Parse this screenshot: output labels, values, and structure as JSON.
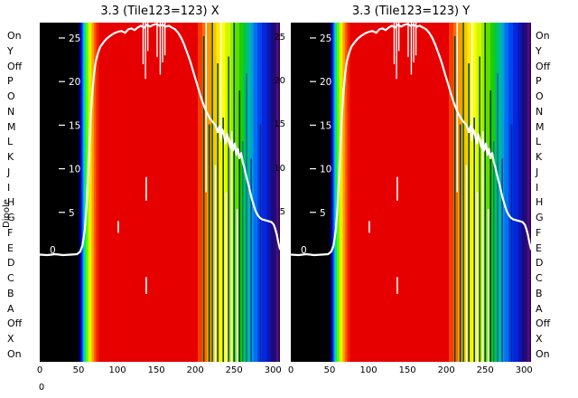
{
  "figure": {
    "dipole_axis_label": "Dipole",
    "dipole_labels_left": [
      "On",
      "Y",
      "Off",
      "P",
      "O",
      "N",
      "M",
      "L",
      "K",
      "J",
      "I",
      "H",
      "G",
      "F",
      "E",
      "D",
      "C",
      "B",
      "A",
      "Off",
      "X",
      "On"
    ],
    "dipole_labels_right": [
      "On",
      "Y",
      "Off",
      "P",
      "O",
      "N",
      "M",
      "L",
      "K",
      "J",
      "I",
      "H",
      "G",
      "F",
      "E",
      "D",
      "C",
      "B",
      "A",
      "Off",
      "X",
      "On"
    ],
    "bottom_left_stray_label": "0"
  },
  "panels": [
    {
      "title": "3.3 (Tile123=123) X"
    },
    {
      "title": "3.3 (Tile123=123) Y"
    }
  ],
  "chart_data": {
    "type": "heatmap",
    "title_left": "3.3 (Tile123=123) X",
    "title_right": "3.3 (Tile123=123) Y",
    "x_ticks": [
      0,
      50,
      100,
      150,
      200,
      250,
      300
    ],
    "x_range": [
      0,
      309
    ],
    "value_range": [
      -12.14,
      26.76
    ],
    "inner_value_ticks": [
      25,
      20,
      15,
      10,
      5
    ],
    "inner_zero_label": "0",
    "legend": "white curve = beam response overlaid on rainbow heatmap; both X and Y panels share the same data",
    "bands": [
      [
        0,
        "#000000"
      ],
      [
        50,
        "#00004f"
      ],
      [
        53,
        "#0020ff"
      ],
      [
        55,
        "#00a8ff"
      ],
      [
        57,
        "#00e87a"
      ],
      [
        59.5,
        "#52fa00"
      ],
      [
        62,
        "#c8ff00"
      ],
      [
        64.5,
        "#ffe800"
      ],
      [
        67,
        "#ffa000"
      ],
      [
        69.5,
        "#ff5a00"
      ],
      [
        72.5,
        "#f52000"
      ],
      [
        76,
        "#e60000"
      ],
      [
        203,
        "#f83c00"
      ],
      [
        209,
        "#ff6a00"
      ],
      [
        215,
        "#ff9900"
      ],
      [
        221,
        "#ffc400"
      ],
      [
        227,
        "#ffe900"
      ],
      [
        233,
        "#fdff00"
      ],
      [
        239,
        "#d0f700"
      ],
      [
        245,
        "#9cec00"
      ],
      [
        251,
        "#5ede00"
      ],
      [
        257,
        "#1ecf00"
      ],
      [
        262,
        "#00c455"
      ],
      [
        267,
        "#00b89e"
      ],
      [
        271,
        "#00a0d8"
      ],
      [
        275,
        "#0070f0"
      ],
      [
        280,
        "#0046f0"
      ],
      [
        286,
        "#0028dc"
      ],
      [
        292,
        "#0f14b4"
      ],
      [
        297,
        "#140c86"
      ],
      [
        301,
        "#2a0a6e"
      ],
      [
        304.5,
        "#4c0d8c"
      ],
      [
        307.5,
        "#2b0640"
      ]
    ],
    "curve": [
      [
        0,
        0.15
      ],
      [
        10,
        0.1
      ],
      [
        20,
        0.2
      ],
      [
        30,
        0.1
      ],
      [
        40,
        0.15
      ],
      [
        48,
        0.2
      ],
      [
        52,
        0.5
      ],
      [
        55,
        1.2
      ],
      [
        58,
        3.0
      ],
      [
        60,
        5.5
      ],
      [
        62,
        9.0
      ],
      [
        64,
        13.0
      ],
      [
        66,
        16.5
      ],
      [
        68,
        19.0
      ],
      [
        70,
        21.0
      ],
      [
        72,
        22.3
      ],
      [
        75,
        23.3
      ],
      [
        78,
        24.0
      ],
      [
        82,
        24.5
      ],
      [
        86,
        24.9
      ],
      [
        90,
        25.2
      ],
      [
        95,
        25.5
      ],
      [
        100,
        25.7
      ],
      [
        105,
        25.8
      ],
      [
        110,
        25.6
      ],
      [
        114,
        26.0
      ],
      [
        118,
        26.1
      ],
      [
        122,
        25.9
      ],
      [
        126,
        26.2
      ],
      [
        130,
        26.4
      ],
      [
        134,
        26.2
      ],
      [
        138,
        26.5
      ],
      [
        142,
        26.3
      ],
      [
        146,
        26.5
      ],
      [
        150,
        26.6
      ],
      [
        154,
        26.4
      ],
      [
        158,
        26.5
      ],
      [
        162,
        26.3
      ],
      [
        166,
        26.4
      ],
      [
        170,
        26.2
      ],
      [
        174,
        26.0
      ],
      [
        178,
        25.6
      ],
      [
        182,
        25.0
      ],
      [
        186,
        24.2
      ],
      [
        190,
        23.2
      ],
      [
        194,
        22.2
      ],
      [
        198,
        21.0
      ],
      [
        202,
        19.8
      ],
      [
        206,
        18.6
      ],
      [
        210,
        17.5
      ],
      [
        214,
        16.6
      ],
      [
        218,
        15.9
      ],
      [
        222,
        15.4
      ],
      [
        226,
        15.0
      ],
      [
        229,
        14.2
      ],
      [
        231,
        14.9
      ],
      [
        233,
        13.6
      ],
      [
        235,
        14.5
      ],
      [
        237,
        13.9
      ],
      [
        239,
        12.9
      ],
      [
        241,
        14.0
      ],
      [
        243,
        13.3
      ],
      [
        245,
        12.4
      ],
      [
        247,
        13.4
      ],
      [
        249,
        12.1
      ],
      [
        251,
        12.9
      ],
      [
        253,
        11.6
      ],
      [
        255,
        12.3
      ],
      [
        257,
        11.2
      ],
      [
        259,
        11.8
      ],
      [
        261,
        10.8
      ],
      [
        263,
        10.2
      ],
      [
        265,
        9.4
      ],
      [
        267,
        8.7
      ],
      [
        269,
        8.0
      ],
      [
        271,
        7.2
      ],
      [
        273,
        6.5
      ],
      [
        275,
        5.9
      ],
      [
        277,
        5.3
      ],
      [
        279,
        4.9
      ],
      [
        281,
        4.6
      ],
      [
        283,
        4.4
      ],
      [
        286,
        4.2
      ],
      [
        290,
        4.1
      ],
      [
        294,
        4.0
      ],
      [
        298,
        3.9
      ],
      [
        301,
        3.6
      ],
      [
        303,
        3.1
      ],
      [
        305,
        2.4
      ],
      [
        307,
        1.5
      ],
      [
        309,
        0.8
      ]
    ],
    "glitch_segments": [
      [
        133,
        27.4,
        22.0
      ],
      [
        136,
        26.8,
        20.3
      ],
      [
        139,
        27.2,
        23.5
      ],
      [
        151,
        26.9,
        22.8
      ],
      [
        155,
        27.3,
        20.8
      ],
      [
        158,
        26.8,
        22.2
      ],
      [
        161,
        27.0,
        23.0
      ]
    ],
    "streaks": [
      [
        211,
        "#064c00",
        0.04,
        1
      ],
      [
        214,
        "#ffffff",
        0,
        0.5
      ],
      [
        218,
        "#073f00",
        0.3,
        1
      ],
      [
        222,
        "#0a5a00",
        0,
        1
      ],
      [
        226,
        "#ffffff",
        0.42,
        1
      ],
      [
        229,
        "#064c00",
        0.12,
        1
      ],
      [
        233,
        "#ffffff",
        0,
        0.35
      ],
      [
        236,
        "#073f00",
        0.28,
        1
      ],
      [
        240,
        "#ffffff",
        0.5,
        1
      ],
      [
        243,
        "#0a5a00",
        0.1,
        1
      ],
      [
        247,
        "#ffffff",
        0.32,
        1
      ],
      [
        250,
        "#064c00",
        0,
        1
      ],
      [
        254,
        "#ffffff",
        0.55,
        1
      ],
      [
        257,
        "#053800",
        0.2,
        1
      ],
      [
        261,
        "#00806e",
        0.35,
        1
      ],
      [
        266,
        "#006e9e",
        0.15,
        1
      ],
      [
        272,
        "#0a3cb4",
        0.4,
        1
      ],
      [
        284,
        "#081e96",
        0.3,
        1
      ]
    ],
    "artifacts": [
      [
        137,
        0.455,
        0.525
      ],
      [
        137,
        0.75,
        0.8
      ],
      [
        101,
        0.585,
        0.62
      ]
    ]
  }
}
